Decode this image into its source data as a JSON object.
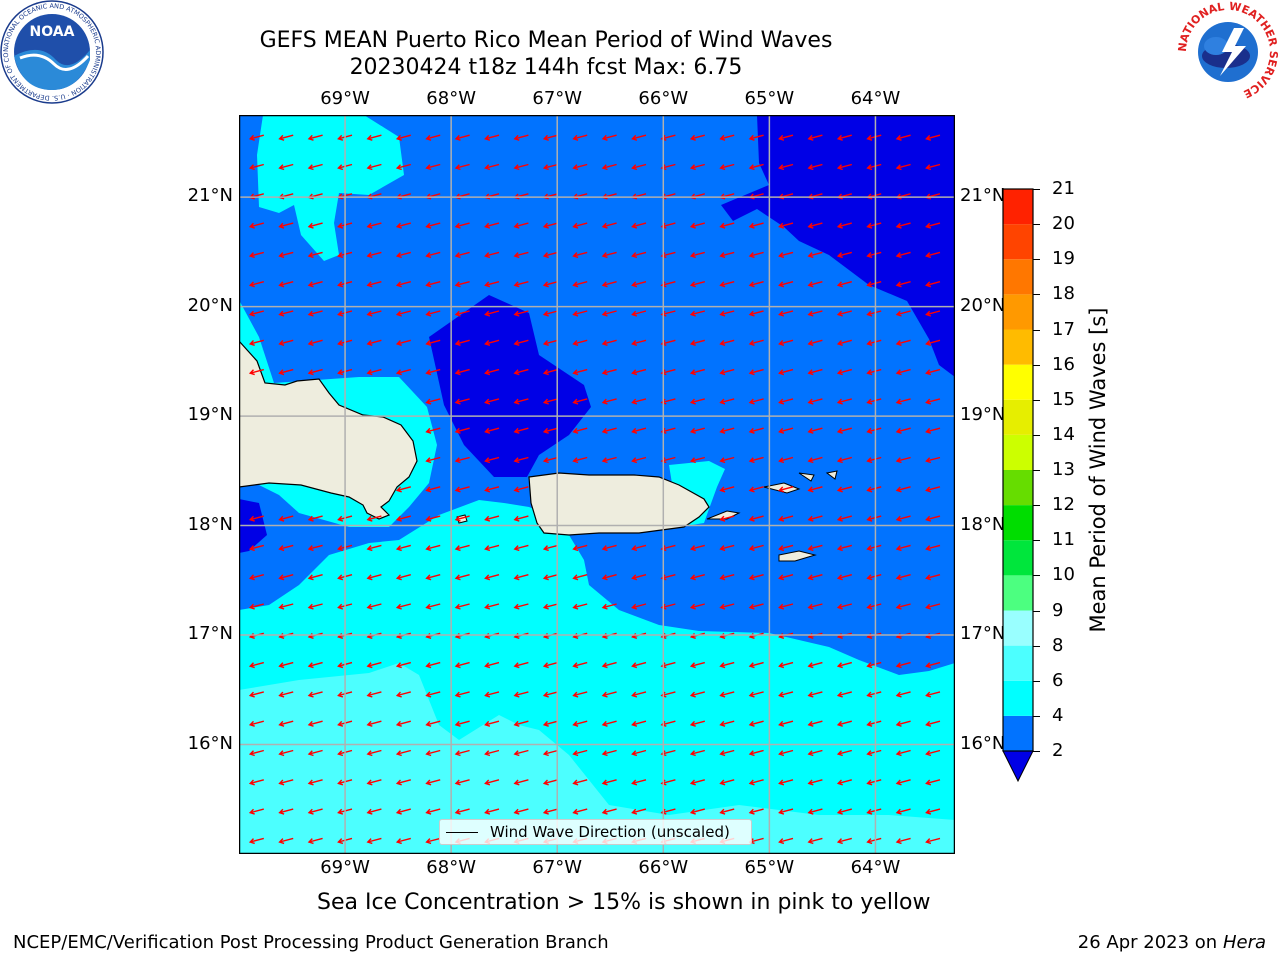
{
  "title": {
    "line1": "GEFS MEAN Puerto Rico Mean Period of Wind Waves",
    "line2": "20230424 t18z 144h fcst   Max: 6.75"
  },
  "map": {
    "lon_ticks": [
      "69°W",
      "68°W",
      "67°W",
      "66°W",
      "65°W",
      "64°W"
    ],
    "lat_ticks": [
      "21°N",
      "20°N",
      "19°N",
      "18°N",
      "17°N",
      "16°N"
    ],
    "lon_values": [
      -69,
      -68,
      -67,
      -66,
      -65,
      -64
    ],
    "lat_values": [
      21,
      20,
      19,
      18,
      17,
      16
    ],
    "extent": {
      "lon": [
        -70.0,
        -63.25
      ],
      "lat": [
        15.0,
        21.75
      ]
    },
    "wind_direction_deg_toward": 255,
    "colors": {
      "ocean_low": "#0173ff",
      "ocean_deep": "#0000e6",
      "cyan_4_6": "#00ffff",
      "cyan_6_8": "#4cffff",
      "land": "#eeedde",
      "arrows": "#ff0000",
      "grid": "#b0b0b0"
    }
  },
  "legend": {
    "label": "Wind Wave Direction (unscaled)"
  },
  "colorbar": {
    "label": "Mean Period of Wind Waves [s]",
    "ticks": [
      "21",
      "20",
      "19",
      "18",
      "17",
      "16",
      "15",
      "14",
      "13",
      "12",
      "11",
      "10",
      "9",
      "8",
      "6",
      "4",
      "2"
    ],
    "levels": [
      {
        "from": 2,
        "to": 4,
        "color": "#0173ff"
      },
      {
        "from": 4,
        "to": 6,
        "color": "#00ffff"
      },
      {
        "from": 6,
        "to": 8,
        "color": "#4cffff"
      },
      {
        "from": 8,
        "to": 9,
        "color": "#99ffff"
      },
      {
        "from": 9,
        "to": 10,
        "color": "#4cff80"
      },
      {
        "from": 10,
        "to": 11,
        "color": "#00e63c"
      },
      {
        "from": 11,
        "to": 12,
        "color": "#00dd00"
      },
      {
        "from": 12,
        "to": 13,
        "color": "#66dd00"
      },
      {
        "from": 13,
        "to": 14,
        "color": "#ccff00"
      },
      {
        "from": 14,
        "to": 15,
        "color": "#e6ee00"
      },
      {
        "from": 15,
        "to": 16,
        "color": "#ffff00"
      },
      {
        "from": 16,
        "to": 17,
        "color": "#ffbb00"
      },
      {
        "from": 17,
        "to": 18,
        "color": "#ff9900"
      },
      {
        "from": 18,
        "to": 19,
        "color": "#ff7700"
      },
      {
        "from": 19,
        "to": 20,
        "color": "#ff4400"
      },
      {
        "from": 20,
        "to": 21,
        "color": "#ff2200"
      }
    ],
    "under_color": "#0000e6"
  },
  "subfooter": "Sea Ice Concentration > 15% is shown in pink to yellow",
  "footer": {
    "left": "NCEP/EMC/Verification Post Processing Product Generation Branch",
    "right_prefix": "26 Apr 2023 on ",
    "right_host": "Hera"
  },
  "logos": {
    "noaa": {
      "text": "NOAA",
      "ring_text": "NATIONAL OCEANIC AND ATMOSPHERIC ADMINISTRATION · U.S. DEPARTMENT OF COMMERCE"
    },
    "nws": {
      "ring_text": "NATIONAL WEATHER SERVICE"
    }
  }
}
